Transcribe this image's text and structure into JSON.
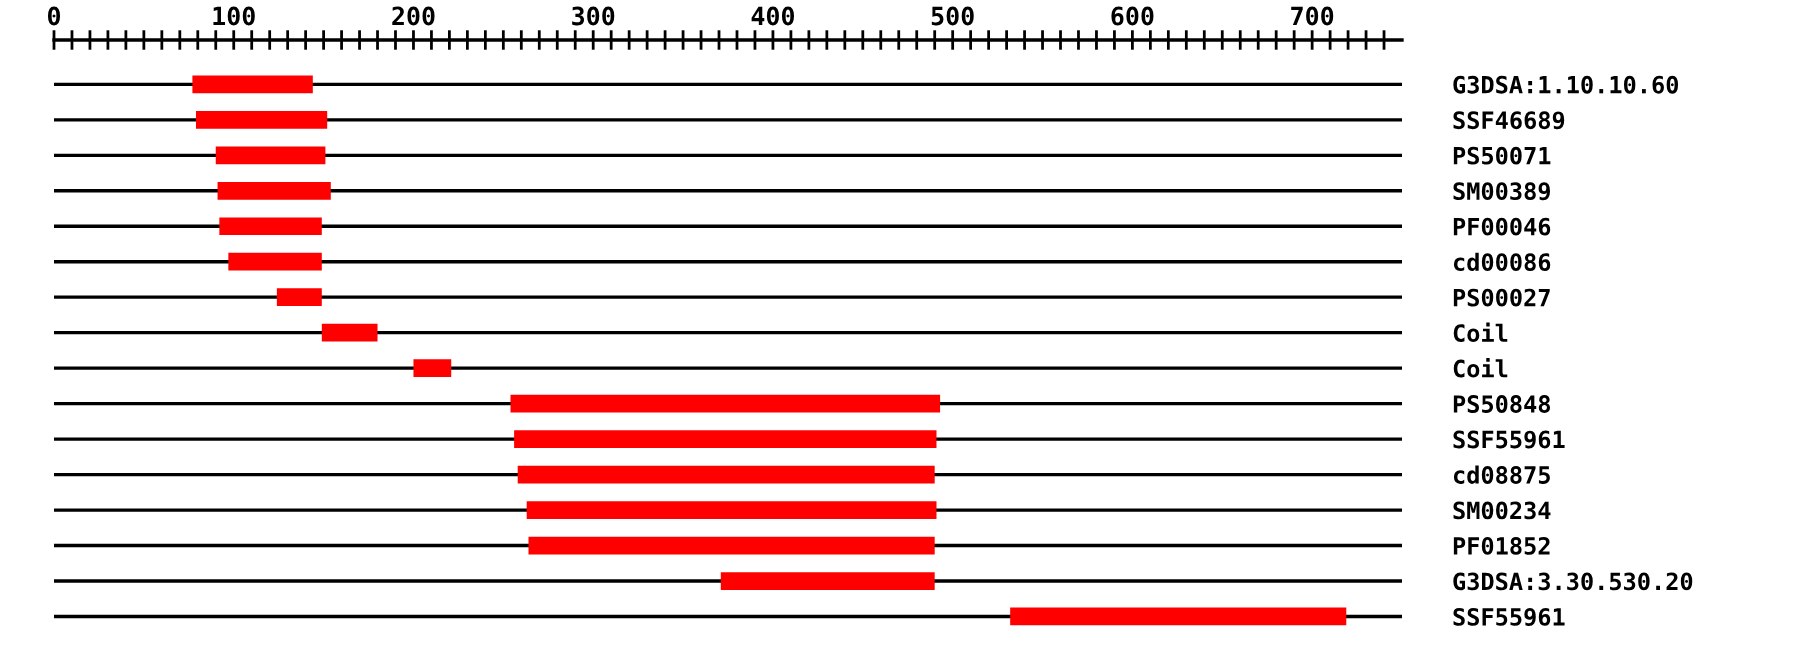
{
  "chart_data": {
    "type": "bar",
    "orientation": "horizontal",
    "color": "#ff0000",
    "categories": [
      "G3DSA:1.10.10.60",
      "SSF46689",
      "PS50071",
      "SM00389",
      "PF00046",
      "cd00086",
      "PS00027",
      "Coil",
      "Coil",
      "PS50848",
      "SSF55961",
      "cd08875",
      "SM00234",
      "PF01852",
      "G3DSA:3.30.530.20",
      "SSF55961"
    ],
    "base": [
      77,
      79,
      90,
      91,
      92,
      97,
      124,
      149,
      200,
      254,
      256,
      258,
      263,
      264,
      371,
      532
    ],
    "values": [
      67,
      73,
      61,
      63,
      57,
      52,
      25,
      31,
      21,
      239,
      235,
      232,
      228,
      226,
      119,
      187
    ],
    "xlim": [
      0,
      750
    ],
    "xticks": [
      0,
      {
        "value": 10,
        "label": null
      },
      {
        "value": 20,
        "label": null
      },
      {
        "value": 30,
        "label": null
      },
      {
        "value": 40,
        "label": null
      },
      {
        "value": 50,
        "label": null
      },
      {
        "value": 60,
        "label": null
      },
      {
        "value": 70,
        "label": null
      },
      {
        "value": 80,
        "label": null
      },
      {
        "value": 90,
        "label": null
      },
      100,
      {
        "value": 110,
        "label": null
      },
      {
        "value": 120,
        "label": null
      },
      {
        "value": 130,
        "label": null
      },
      {
        "value": 140,
        "label": null
      },
      {
        "value": 150,
        "label": null
      },
      {
        "value": 160,
        "label": null
      },
      {
        "value": 170,
        "label": null
      },
      {
        "value": 180,
        "label": null
      },
      {
        "value": 190,
        "label": null
      },
      200,
      {
        "value": 210,
        "label": null
      },
      {
        "value": 220,
        "label": null
      },
      {
        "value": 230,
        "label": null
      },
      {
        "value": 240,
        "label": null
      },
      {
        "value": 250,
        "label": null
      },
      {
        "value": 260,
        "label": null
      },
      {
        "value": 270,
        "label": null
      },
      {
        "value": 280,
        "label": null
      },
      {
        "value": 290,
        "label": null
      },
      300,
      {
        "value": 310,
        "label": null
      },
      {
        "value": 320,
        "label": null
      },
      {
        "value": 330,
        "label": null
      },
      {
        "value": 340,
        "label": null
      },
      {
        "value": 350,
        "label": null
      },
      {
        "value": 360,
        "label": null
      },
      {
        "value": 370,
        "label": null
      },
      {
        "value": 380,
        "label": null
      },
      {
        "value": 390,
        "label": null
      },
      400,
      {
        "value": 410,
        "label": null
      },
      {
        "value": 420,
        "label": null
      },
      {
        "value": 430,
        "label": null
      },
      {
        "value": 440,
        "label": null
      },
      {
        "value": 450,
        "label": null
      },
      {
        "value": 460,
        "label": null
      },
      {
        "value": 470,
        "label": null
      },
      {
        "value": 480,
        "label": null
      },
      {
        "value": 490,
        "label": null
      },
      500,
      {
        "value": 510,
        "label": null
      },
      {
        "value": 520,
        "label": null
      },
      {
        "value": 530,
        "label": null
      },
      {
        "value": 540,
        "label": null
      },
      {
        "value": 550,
        "label": null
      },
      {
        "value": 560,
        "label": null
      },
      {
        "value": 570,
        "label": null
      },
      {
        "value": 580,
        "label": null
      },
      {
        "value": 590,
        "label": null
      },
      600,
      {
        "value": 610,
        "label": null
      },
      {
        "value": 620,
        "label": null
      },
      {
        "value": 630,
        "label": null
      },
      {
        "value": 640,
        "label": null
      },
      {
        "value": 650,
        "label": null
      },
      {
        "value": 660,
        "label": null
      },
      {
        "value": 670,
        "label": null
      },
      {
        "value": 680,
        "label": null
      },
      {
        "value": 690,
        "label": null
      },
      700,
      {
        "value": 710,
        "label": null
      },
      {
        "value": 720,
        "label": null
      },
      {
        "value": 730,
        "label": null
      },
      {
        "value": 740,
        "label": null
      }
    ],
    "grid": "y"
  }
}
